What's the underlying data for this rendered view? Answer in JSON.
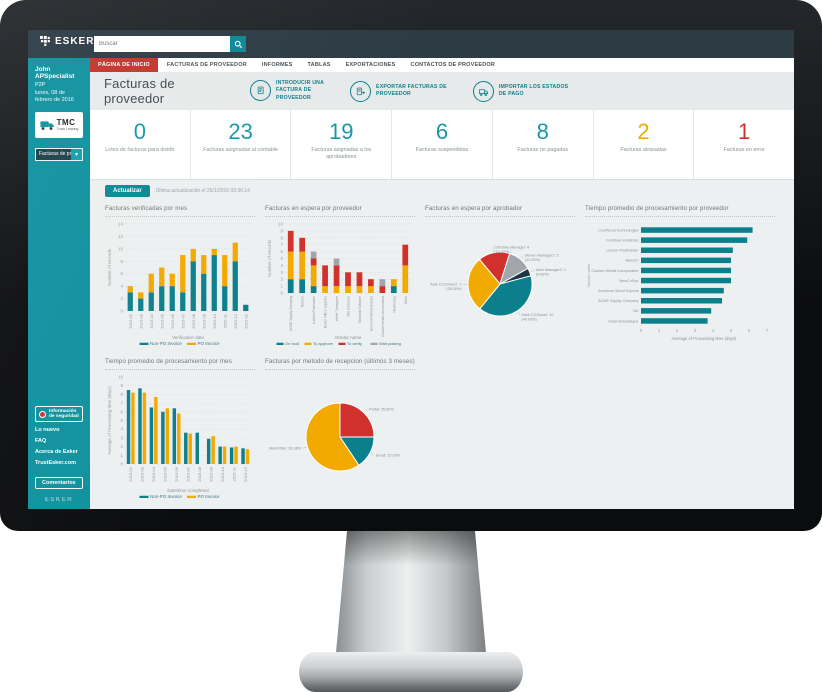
{
  "palette": {
    "teal": "#0c7f8c",
    "teal_bright": "#1797a5",
    "yellow": "#f2a900",
    "red": "#d0312d",
    "gray": "#a0a6ab",
    "navy": "#1f3648"
  },
  "topbar": {
    "brand": "ESKER",
    "search_placeholder": "Buscar"
  },
  "sidebar": {
    "user_name": "John APSpecialist",
    "user_role": "P2P",
    "date": "lunes, 08 de febrero de 2016",
    "logo_text": "TMC",
    "logo_sub": "Truck Leasing",
    "dropdown_label": "Facturas de proveedor",
    "security_label": "Información de seguridad",
    "links": [
      {
        "label": "Lo nuevo"
      },
      {
        "label": "FAQ"
      },
      {
        "label": "Acerca de Esker"
      },
      {
        "label": "TrustEsker.com"
      }
    ],
    "feedback_label": "Comentarios",
    "footer_brand": "ESKER"
  },
  "nav": {
    "tabs": [
      {
        "label": "PÁGINA DE INICIO",
        "active": true
      },
      {
        "label": "FACTURAS DE PROVEEDOR"
      },
      {
        "label": "INFORMES"
      },
      {
        "label": "TABLAS"
      },
      {
        "label": "EXPORTACIONES"
      },
      {
        "label": "CONTACTOS DE PROVEEDOR"
      }
    ]
  },
  "header": {
    "title": "Facturas de proveedor",
    "actions": [
      {
        "icon": "invoice-add-icon",
        "lines": [
          "INTRODUCIR UNA",
          "FACTURA DE",
          "PROVEEDOR"
        ]
      },
      {
        "icon": "invoice-export-icon",
        "lines": [
          "EXPORTAR FACTURAS DE",
          "PROVEEDOR"
        ]
      },
      {
        "icon": "truck-import-icon",
        "lines": [
          "IMPORTAR LOS ESTADOS",
          "DE PAGO"
        ]
      }
    ]
  },
  "kpis": [
    {
      "value": "0",
      "label": "Lotes de facturas para dividir",
      "color": "#1797a5"
    },
    {
      "value": "23",
      "label": "Facturas asignadas al contable",
      "color": "#1797a5"
    },
    {
      "value": "19",
      "label": "Facturas asignadas a los aprobadores",
      "color": "#1797a5"
    },
    {
      "value": "6",
      "label": "Facturas suspendidas",
      "color": "#1797a5"
    },
    {
      "value": "8",
      "label": "Facturas no pagadas",
      "color": "#1797a5"
    },
    {
      "value": "2",
      "label": "Facturas atrasadas",
      "color": "#f2a900"
    },
    {
      "value": "1",
      "label": "Facturas en error",
      "color": "#d0312d"
    }
  ],
  "refresh": {
    "button_label": "Actualizar",
    "last_update": "Última actualización el 26/1/2016 09:36:14"
  },
  "chart_data": [
    {
      "type": "bar",
      "stacked": true,
      "title": "Facturas verificadas por mes",
      "xlabel": "Verification date",
      "ylabel": "Number of records",
      "categories": [
        "2015-02",
        "2015-03",
        "2015-04",
        "2015-05",
        "2015-06",
        "2015-07",
        "2015-08",
        "2015-09",
        "2015-10",
        "2015-11",
        "2015-12",
        "2016-01"
      ],
      "series": [
        {
          "name": "Non-PO Invoice",
          "color": "#0c7f8c",
          "values": [
            3,
            2,
            3,
            4,
            4,
            3,
            8,
            6,
            9,
            4,
            8,
            1
          ]
        },
        {
          "name": "PO Invoice",
          "color": "#f2a900",
          "values": [
            1,
            1,
            3,
            3,
            2,
            6,
            2,
            3,
            1,
            5,
            3,
            0
          ]
        }
      ],
      "ylim": [
        0,
        14
      ],
      "ytick": 2,
      "label_space": 22,
      "cat_font": 8
    },
    {
      "type": "bar",
      "stacked": true,
      "title": "Facturas en espera por proveedor",
      "xlabel": "Vendor name",
      "ylabel": "Number of records",
      "categories": [
        "ACME Supply Company",
        "Natcom",
        "London Postmaster",
        "Dexter Office Supplies",
        "Heller Transporte",
        "Dial Concerns",
        "Mountain Software",
        "American Wood Exports",
        "Custom Metals Incorporated",
        "NewCoSup",
        "Other"
      ],
      "series": [
        {
          "name": "On hold",
          "color": "#0c7f8c",
          "values": [
            2,
            2,
            1,
            0,
            0,
            0,
            0,
            0,
            0,
            1,
            0
          ]
        },
        {
          "name": "To approve",
          "color": "#f2a900",
          "values": [
            4,
            4,
            3,
            1,
            1,
            1,
            1,
            1,
            0,
            1,
            4
          ]
        },
        {
          "name": "To verify",
          "color": "#d0312d",
          "values": [
            3,
            2,
            1,
            3,
            3,
            2,
            2,
            1,
            1,
            0,
            3
          ]
        },
        {
          "name": "Wait posting",
          "color": "#a0a6ab",
          "values": [
            0,
            0,
            1,
            0,
            1,
            0,
            0,
            0,
            1,
            0,
            0
          ]
        }
      ],
      "ylim": [
        0,
        10
      ],
      "ytick": 1,
      "label_space": 40,
      "cat_font": 6.5
    },
    {
      "type": "pie",
      "title": "Facturas en espera por aprobador",
      "start_angle": -40,
      "r2": 64,
      "slices": [
        {
          "label": "Christine Manager: 4 (16.00%)",
          "value": 16,
          "color": "#d0312d"
        },
        {
          "label": "Steven Manager2: 3 (12.00%)",
          "value": 12,
          "color": "#a0a6ab"
        },
        {
          "label": "Alice Manager2: 1 (4.00%)",
          "value": 4,
          "color": "#1f3648"
        },
        {
          "label": "Mark CCOwner: 10 (40.00%)",
          "value": 40,
          "color": "#0c7f8c"
        },
        {
          "label": "Kate CCOwner2: 7 (28.00%)",
          "value": 28,
          "color": "#f2a900"
        }
      ]
    },
    {
      "type": "hbar",
      "title": "Tiempo promedio de procesamiento por proveedor",
      "xlabel": "Average of Processing time (days)",
      "ylabel": "Vendor name",
      "color": "#0c7f8c",
      "categories": [
        "CoolWood Technologies",
        "Furniture Industries",
        "London Postmaster",
        "Natcom",
        "Custom Metals Incorporated",
        "NewCoSup",
        "American Wood Exports",
        "ACME Supply Company",
        "NU",
        "Outel Bureautique"
      ],
      "values": [
        6.2,
        5.9,
        5.1,
        5.0,
        5.0,
        5.0,
        4.6,
        4.5,
        3.9,
        3.7
      ],
      "xlim": [
        0,
        7
      ],
      "xtick": 1
    },
    {
      "type": "bar",
      "stacked": false,
      "title": "Tiempo promedio de procesamiento por mes",
      "xlabel": "Date/time completed",
      "ylabel": "Average of Processing time (days)",
      "categories": [
        "2015-02",
        "2015-03",
        "2015-04",
        "2015-05",
        "2015-06",
        "2015-07",
        "2015-08",
        "2015-09",
        "2015-10",
        "2015-11",
        "2015-12"
      ],
      "series": [
        {
          "name": "Non-PO Invoice",
          "color": "#0c7f8c",
          "values": [
            8.5,
            8.7,
            6.5,
            6.0,
            6.4,
            3.6,
            3.6,
            2.9,
            2.0,
            1.9,
            1.8
          ]
        },
        {
          "name": "PO Invoice",
          "color": "#f2a900",
          "values": [
            8.2,
            8.2,
            7.7,
            6.4,
            5.8,
            3.5,
            0,
            3.2,
            2.0,
            2.0,
            1.7
          ]
        }
      ],
      "ylim": [
        0,
        10
      ],
      "ytick": 1,
      "label_space": 22,
      "cat_font": 8
    },
    {
      "type": "pie",
      "title": "Facturas por metodo de recepcion (últimos 3 meses)",
      "start_angle": 0,
      "r2": 68,
      "slices": [
        {
          "label": "Portal: 25.00%",
          "value": 25,
          "color": "#d0312d"
        },
        {
          "label": "Email: 15.63%",
          "value": 15.63,
          "color": "#0c7f8c"
        },
        {
          "label": "Mail/Other: 59.38%",
          "value": 59.38,
          "color": "#f2a900"
        }
      ]
    }
  ]
}
